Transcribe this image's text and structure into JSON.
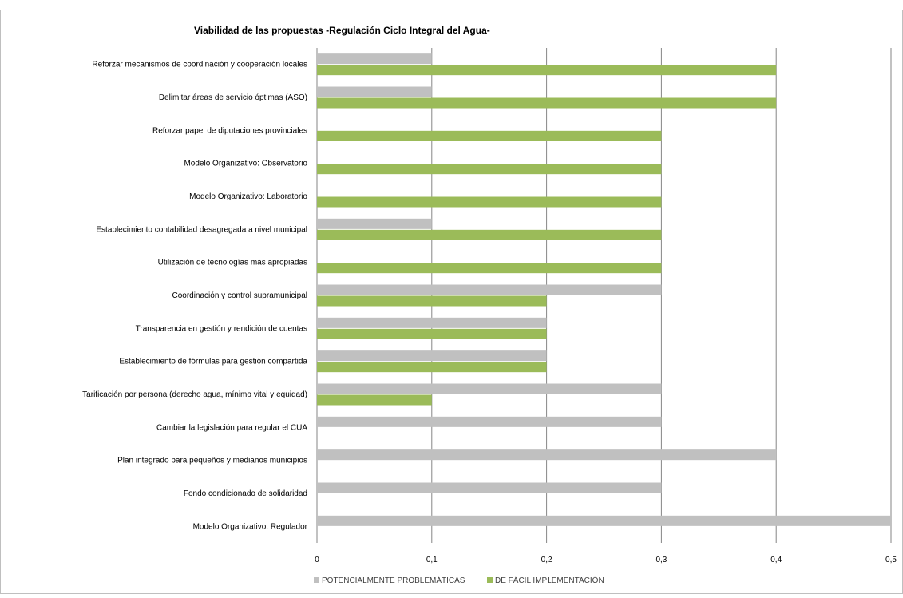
{
  "chart_data": {
    "type": "bar",
    "orientation": "horizontal",
    "title": "Viabilidad de las propuestas -Regulación Ciclo Integral del Agua-",
    "xlabel": "",
    "ylabel": "",
    "xlim": [
      0,
      0.5
    ],
    "x_ticks": [
      "0",
      "0,1",
      "0,2",
      "0,3",
      "0,4",
      "0,5"
    ],
    "x_tick_values": [
      0,
      0.1,
      0.2,
      0.3,
      0.4,
      0.5
    ],
    "grid": true,
    "legend_position": "bottom",
    "categories": [
      "Reforzar mecanismos de coordinación y cooperación locales",
      "Delimitar áreas de servicio óptimas (ASO)",
      "Reforzar papel de diputaciones provinciales",
      "Modelo Organizativo: Observatorio",
      "Modelo Organizativo: Laboratorio",
      "Establecimiento contabilidad desagregada a nivel municipal",
      "Utilización de tecnologías más apropiadas",
      "Coordinación y control supramunicipal",
      "Transparencia en gestión y rendición de cuentas",
      "Establecimiento de fórmulas para gestión compartida",
      "Tarificación por persona (derecho agua, mínimo vital y equidad)",
      "Cambiar la legislación para regular el CUA",
      "Plan integrado para pequeños y medianos municipios",
      "Fondo condicionado de solidaridad",
      "Modelo Organizativo: Regulador"
    ],
    "series": [
      {
        "name": "POTENCIALMENTE PROBLEMÁTICAS",
        "color": "#c0c0c0",
        "values": [
          0.1,
          0.1,
          0,
          0,
          0,
          0.1,
          0,
          0.3,
          0.2,
          0.2,
          0.3,
          0.3,
          0.4,
          0.3,
          0.5
        ]
      },
      {
        "name": "DE FÁCIL IMPLEMENTACIÓN",
        "color": "#9bbb59",
        "values": [
          0.4,
          0.4,
          0.3,
          0.3,
          0.3,
          0.3,
          0.3,
          0.2,
          0.2,
          0.2,
          0.1,
          0,
          0,
          0,
          0
        ]
      }
    ]
  }
}
